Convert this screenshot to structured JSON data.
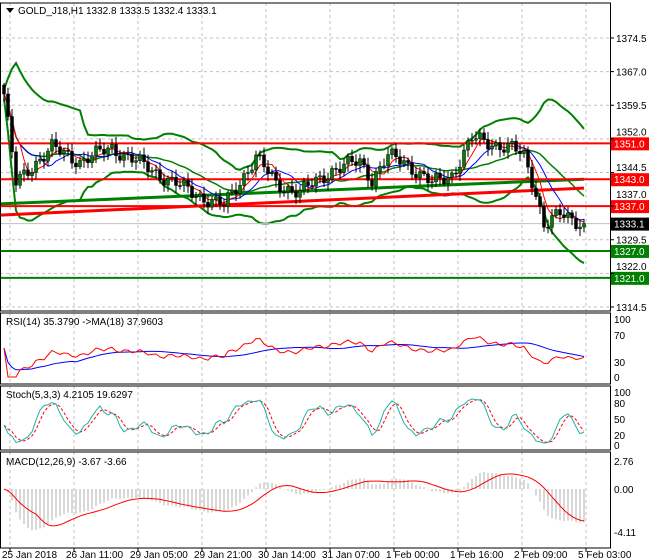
{
  "header": {
    "symbol": "GOLD_J18,H1",
    "ohlc": "1332.8 1333.5 1332.4 1333.1"
  },
  "colors": {
    "bull": "#008000",
    "bear": "#000000",
    "bands": "#008000",
    "resistance": "#ff0000",
    "support": "#008000",
    "current": "#000000"
  },
  "chart_data": {
    "type": "candlestick",
    "symbol": "GOLD_J18",
    "timeframe": "H1",
    "price_ticks": [
      "1374.5",
      "1367.0",
      "1359.5",
      "1352.0",
      "1344.5",
      "1337.0",
      "1329.5",
      "1322.0",
      "1314.5"
    ],
    "price_range": [
      1314.5,
      1374.5
    ],
    "levels": [
      {
        "label": "1351.0",
        "value": 1351.0,
        "color": "#ff0000"
      },
      {
        "label": "1343.0",
        "value": 1343.0,
        "color": "#ff0000"
      },
      {
        "label": "1337.0",
        "value": 1337.0,
        "color": "#ff0000"
      },
      {
        "label": "1327.0",
        "value": 1327.0,
        "color": "#008000"
      },
      {
        "label": "1321.0",
        "value": 1321.0,
        "color": "#008000"
      }
    ],
    "current_price": {
      "label": "1333.1",
      "value": 1333.1
    },
    "trendlines": [
      {
        "name": "red-trend",
        "from": 1335.0,
        "to": 1341.0,
        "color": "#ff0000"
      },
      {
        "name": "green-ma",
        "from": 1337.5,
        "to": 1343.0,
        "color": "#008000"
      }
    ],
    "close_keypoints": [
      [
        0,
        1362
      ],
      [
        3,
        1342
      ],
      [
        7,
        1346
      ],
      [
        12,
        1350
      ],
      [
        19,
        1347
      ],
      [
        27,
        1350
      ],
      [
        37,
        1345
      ],
      [
        47,
        1340
      ],
      [
        55,
        1337
      ],
      [
        63,
        1348
      ],
      [
        68,
        1342
      ],
      [
        74,
        1340
      ],
      [
        82,
        1345
      ],
      [
        89,
        1347
      ],
      [
        92,
        1343
      ],
      [
        96,
        1348
      ],
      [
        100,
        1347
      ],
      [
        107,
        1342
      ],
      [
        112,
        1344
      ],
      [
        117,
        1352
      ],
      [
        127,
        1350
      ],
      [
        130,
        1348
      ],
      [
        133,
        1340
      ],
      [
        135,
        1333
      ],
      [
        139,
        1335
      ],
      [
        145,
        1333.1
      ]
    ],
    "x_labels": [
      "25 Jan 2018",
      "26 Jan 11:00",
      "29 Jan 05:00",
      "29 Jan 21:00",
      "30 Jan 14:00",
      "31 Jan 07:00",
      "1 Feb 00:00",
      "1 Feb 16:00",
      "2 Feb 09:00",
      "5 Feb 03:00"
    ],
    "rsi": {
      "title": "RSI(14) 35.3790  ->MA(18) 37.9603",
      "ticks": [
        "100",
        "70",
        "30",
        "0"
      ]
    },
    "stoch": {
      "title": "Stoch(5,3,3) 4.2105 19.6297",
      "ticks": [
        "100",
        "80",
        "50",
        "20",
        "0"
      ]
    },
    "macd": {
      "title": "MACD(12,26,9) -3.67 -3.66",
      "ticks": [
        "2.76",
        "0.00",
        "-4.11"
      ],
      "range": [
        -4.11,
        2.76
      ]
    }
  }
}
